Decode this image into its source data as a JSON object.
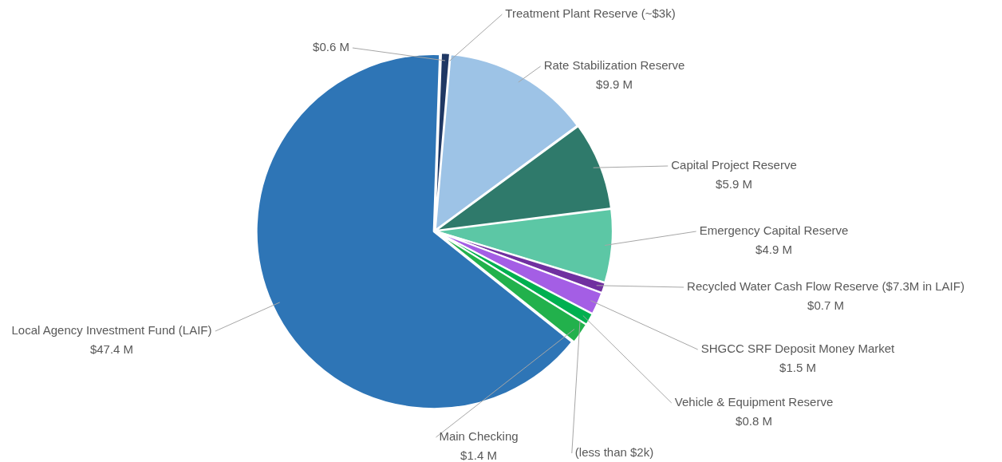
{
  "chart_data": {
    "type": "pie",
    "categories": [
      null,
      "Treatment Plant Reserve (~$3k)",
      "Rate Stabilization Reserve",
      "Capital Project Reserve",
      "Emergency Capital Reserve",
      "Recycled Water Cash Flow Reserve ($7.3M in LAIF)",
      "SHGCC SRF Deposit Money Market",
      "Vehicle & Equipment Reserve",
      "(less than $2k)",
      "Main Checking",
      "Local Agency Investment Fund (LAIF)"
    ],
    "values": [
      0.6,
      null,
      9.9,
      5.9,
      4.9,
      0.7,
      1.5,
      0.8,
      null,
      1.4,
      47.4
    ],
    "value_labels": [
      "$0.6 M",
      null,
      "$9.9 M",
      "$5.9 M",
      "$4.9 M",
      "$0.7 M",
      "$1.5 M",
      "$0.8 M",
      null,
      "$1.4 M",
      "$47.4 M"
    ],
    "colors": [
      "#1f3864",
      "#4a86c8",
      "#9dc3e6",
      "#2f7a6b",
      "#5cc7a5",
      "#7030a0",
      "#a45ee5",
      "#00b050",
      "#0a9a48",
      "#22b14c",
      "#2e75b6"
    ],
    "legend": false
  }
}
